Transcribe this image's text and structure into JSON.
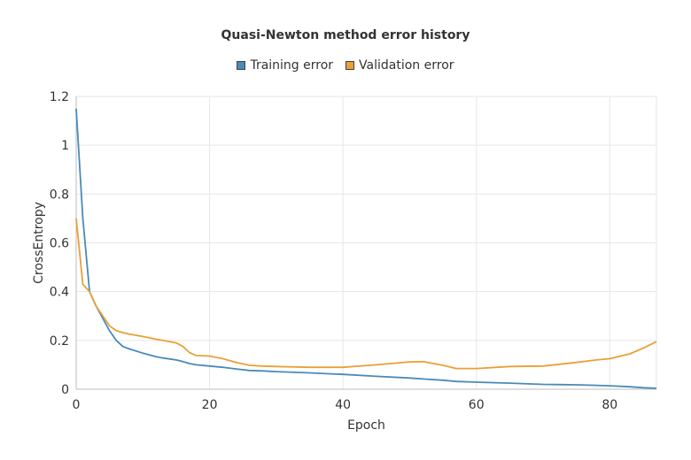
{
  "chart_data": {
    "type": "line",
    "title": "Quasi-Newton method error history",
    "xlabel": "Epoch",
    "ylabel": "CrossEntropy",
    "xlim": [
      0,
      87
    ],
    "ylim": [
      0,
      1.2
    ],
    "xticks": [
      "0",
      "20",
      "40",
      "60",
      "80"
    ],
    "yticks": [
      "0",
      "0.2",
      "0.4",
      "0.6",
      "0.8",
      "1",
      "1.2"
    ],
    "grid": true,
    "legend_position": "top",
    "x": [
      0,
      1,
      2,
      3,
      4,
      5,
      6,
      7,
      8,
      10,
      12,
      13,
      15,
      16,
      17,
      18,
      20,
      22,
      24,
      26,
      28,
      30,
      35,
      40,
      45,
      50,
      52,
      55,
      57,
      60,
      65,
      70,
      75,
      78,
      80,
      83,
      85,
      87
    ],
    "series": [
      {
        "name": "Training error",
        "color": "#4a8ab8",
        "values": [
          1.15,
          0.7,
          0.4,
          0.34,
          0.29,
          0.24,
          0.2,
          0.175,
          0.165,
          0.148,
          0.133,
          0.128,
          0.12,
          0.113,
          0.105,
          0.1,
          0.095,
          0.09,
          0.083,
          0.077,
          0.075,
          0.072,
          0.067,
          0.061,
          0.053,
          0.046,
          0.042,
          0.037,
          0.032,
          0.029,
          0.025,
          0.02,
          0.018,
          0.016,
          0.014,
          0.01,
          0.006,
          0.004
        ]
      },
      {
        "name": "Validation error",
        "color": "#e8a038",
        "values": [
          0.7,
          0.43,
          0.4,
          0.34,
          0.3,
          0.26,
          0.24,
          0.232,
          0.226,
          0.216,
          0.205,
          0.2,
          0.19,
          0.175,
          0.15,
          0.138,
          0.136,
          0.125,
          0.11,
          0.098,
          0.095,
          0.093,
          0.09,
          0.09,
          0.1,
          0.112,
          0.113,
          0.098,
          0.085,
          0.085,
          0.093,
          0.095,
          0.11,
          0.12,
          0.125,
          0.145,
          0.168,
          0.195
        ]
      }
    ]
  }
}
